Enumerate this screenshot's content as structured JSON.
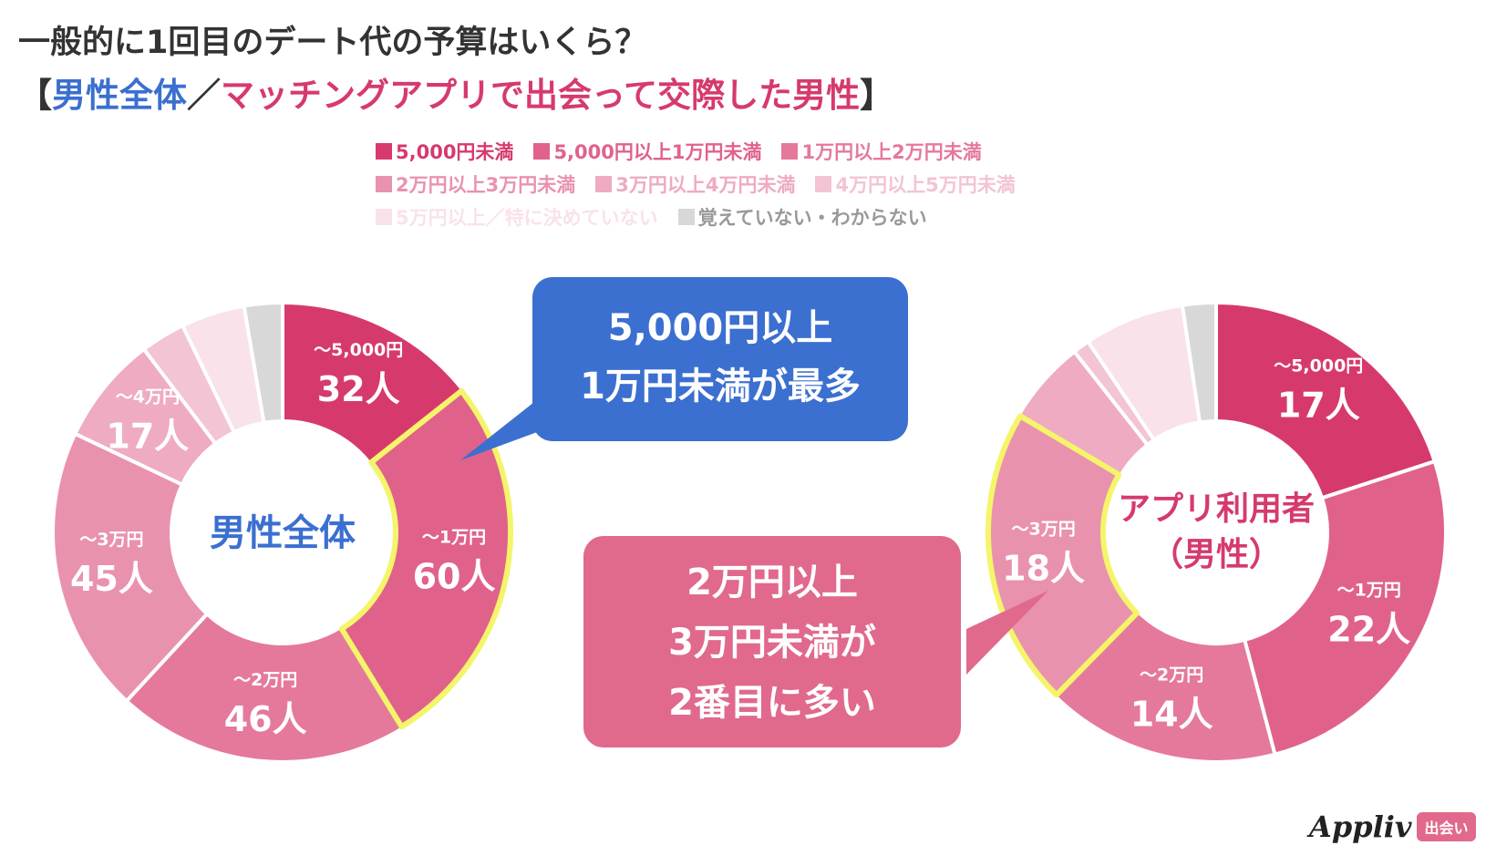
{
  "header": {
    "title": "一般的に1回目のデート代の予算はいくら？",
    "subtitle_open": "【",
    "subtitle_part1": "男性全体",
    "subtitle_sep": "／",
    "subtitle_part2": "マッチングアプリで出会って交際した男性",
    "subtitle_close": "】"
  },
  "legend": {
    "rows": [
      [
        {
          "label": "5,000円未満",
          "color": "#d63a6c"
        },
        {
          "label": "5,000円以上1万円未満",
          "color": "#e0628b"
        },
        {
          "label": "1万円以上2万円未満",
          "color": "#e5799b"
        }
      ],
      [
        {
          "label": "2万円以上3万円未満",
          "color": "#e992ae"
        },
        {
          "label": "3万円以上4万円未満",
          "color": "#eeabc1"
        },
        {
          "label": "4万円以上5万円未満",
          "color": "#f3c4d3"
        }
      ],
      [
        {
          "label": "5万円以上／特に決めていない",
          "color": "#f9e2ea"
        },
        {
          "label": "覚えていない・わからない",
          "color": "#d8d8d8",
          "text_color": "#999999"
        }
      ]
    ]
  },
  "callouts": {
    "blue": {
      "line1": "5,000円以上",
      "line2": "1万円未満が最多"
    },
    "pink": {
      "line1": "2万円以上",
      "line2": "3万円未満が",
      "line3": "2番目に多い"
    }
  },
  "logo": {
    "word": "Appliv",
    "badge": "出会い"
  },
  "chart_data": [
    {
      "type": "pie",
      "center_label": "男性全体",
      "center_color": "#3b6fd0",
      "categories": [
        "5,000円未満",
        "5,000円以上1万円未満",
        "1万円以上2万円未満",
        "2万円以上3万円未満",
        "3万円以上4万円未満",
        "4万円以上5万円未満",
        "5万円以上／特に決めていない",
        "覚えていない・わからない"
      ],
      "values": [
        32,
        60,
        46,
        45,
        17,
        7,
        10,
        6
      ],
      "colors": [
        "#d63a6c",
        "#e0628b",
        "#e5799b",
        "#e992ae",
        "#eeabc1",
        "#f3c4d3",
        "#f9e2ea",
        "#d8d8d8"
      ],
      "slice_labels": [
        {
          "range": "〜5,000円",
          "count": "32人"
        },
        {
          "range": "〜1万円",
          "count": "60人"
        },
        {
          "range": "〜2万円",
          "count": "46人"
        },
        {
          "range": "〜3万円",
          "count": "45人"
        },
        {
          "range": "〜4万円",
          "count": "17人"
        },
        null,
        null,
        null
      ],
      "highlight_index": 1
    },
    {
      "type": "pie",
      "center_label": "アプリ利用者（男性）",
      "center_line1": "アプリ利用者",
      "center_line2": "（男性）",
      "center_color": "#d63a6c",
      "categories": [
        "5,000円未満",
        "5,000円以上1万円未満",
        "1万円以上2万円未満",
        "2万円以上3万円未満",
        "3万円以上4万円未満",
        "4万円以上5万円未満",
        "5万円以上／特に決めていない",
        "覚えていない・わからない"
      ],
      "values": [
        17,
        22,
        14,
        18,
        5,
        1,
        6,
        2
      ],
      "colors": [
        "#d63a6c",
        "#e0628b",
        "#e5799b",
        "#e992ae",
        "#eeabc1",
        "#f3c4d3",
        "#f9e2ea",
        "#d8d8d8"
      ],
      "slice_labels": [
        {
          "range": "〜5,000円",
          "count": "17人"
        },
        {
          "range": "〜1万円",
          "count": "22人"
        },
        {
          "range": "〜2万円",
          "count": "14人"
        },
        {
          "range": "〜3万円",
          "count": "18人"
        },
        null,
        null,
        null,
        null
      ],
      "highlight_index": 3
    }
  ]
}
